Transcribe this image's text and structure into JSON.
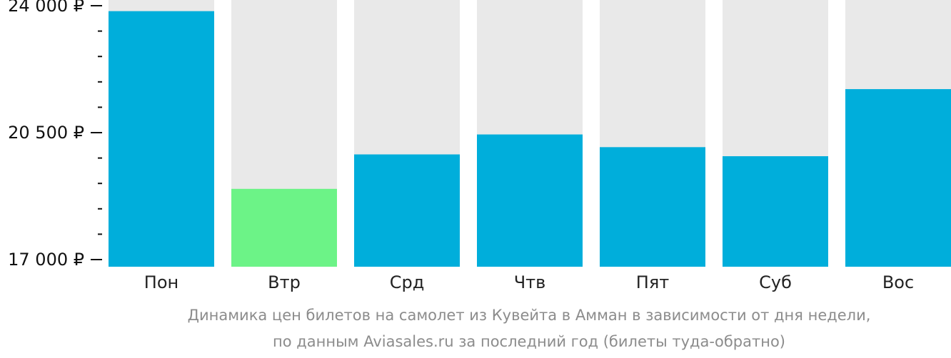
{
  "chart_data": {
    "type": "bar",
    "categories": [
      "Пон",
      "Втр",
      "Срд",
      "Чтв",
      "Пят",
      "Суб",
      "Вос"
    ],
    "values": [
      23850,
      18950,
      19900,
      20450,
      20100,
      19850,
      21700
    ],
    "ylim": [
      17000,
      24000
    ],
    "yticks": [
      17000,
      20500,
      24000
    ],
    "ytick_labels": [
      "17 000 ₽",
      "20 500 ₽",
      "24 000 ₽"
    ],
    "minor_tick_step": 700,
    "highlight_index": 1,
    "colors": {
      "bar": "#00aedb",
      "highlight": "#6cf387",
      "background_column": "#e9e9e9",
      "axis": "#111111"
    }
  },
  "caption": {
    "line1": "Динамика цен билетов на самолет из Кувейта в Амман в зависимости от дня недели,",
    "line2": "по данным Aviasales.ru за последний год (билеты туда-обратно)"
  }
}
